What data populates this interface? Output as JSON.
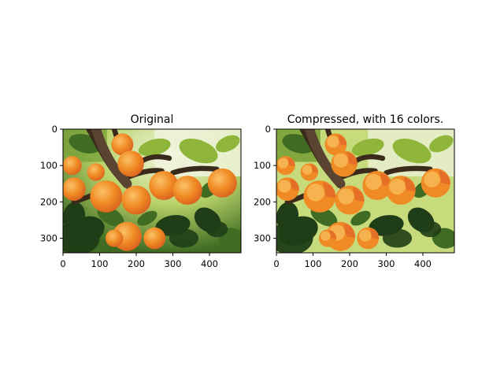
{
  "chart_data": [
    {
      "type": "image",
      "title": "Original",
      "image_width": 486,
      "image_height": 340,
      "colors": "full",
      "xticks": [
        0,
        100,
        200,
        300,
        400
      ],
      "yticks": [
        0,
        100,
        200,
        300
      ],
      "xlim": [
        0,
        486
      ],
      "ylim": [
        340,
        0
      ]
    },
    {
      "type": "image",
      "title": "Compressed, with 16 colors.",
      "image_width": 486,
      "image_height": 340,
      "colors": 16,
      "xticks": [
        0,
        100,
        200,
        300,
        400
      ],
      "yticks": [
        0,
        100,
        200,
        300
      ],
      "xlim": [
        0,
        486
      ],
      "ylim": [
        340,
        0
      ]
    }
  ],
  "palette": {
    "background_light": "#eaf0d0",
    "leaf_dark": "#1f3d16",
    "leaf_mid": "#3f6b22",
    "leaf_light": "#8fb63a",
    "branch": "#3a2a1c",
    "fruit_orange": "#f08a24",
    "fruit_light": "#f7b250",
    "fruit_blush": "#e0642a"
  }
}
